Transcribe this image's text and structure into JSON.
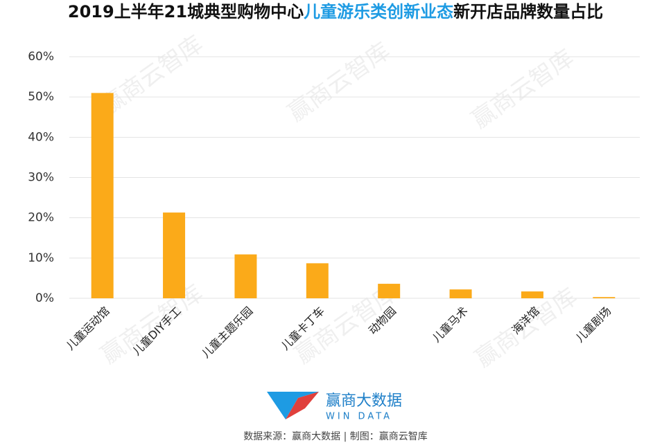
{
  "chart_data": {
    "type": "bar",
    "title_parts": [
      "2019上半年21城典型购物中心",
      "儿童游乐类创新业态",
      "新开店品牌数量占比"
    ],
    "title_colors": [
      "#111111",
      "#1e9be3",
      "#111111"
    ],
    "categories": [
      "儿童运动馆",
      "儿童DIY手工",
      "儿童主题乐园",
      "儿童卡丁车",
      "动物园",
      "儿童马术",
      "海洋馆",
      "儿童剧场"
    ],
    "values": [
      51,
      21.3,
      10.9,
      8.7,
      3.6,
      2.2,
      1.7,
      0.3
    ],
    "color": "#fbaa19",
    "ylim": [
      0,
      60
    ],
    "yticks": [
      {
        "value": 0,
        "label": "0%"
      },
      {
        "value": 10,
        "label": "10%"
      },
      {
        "value": 20,
        "label": "20%"
      },
      {
        "value": 30,
        "label": "30%"
      },
      {
        "value": 40,
        "label": "40%"
      },
      {
        "value": 50,
        "label": "50%"
      },
      {
        "value": 60,
        "label": "60%"
      }
    ],
    "grid": true,
    "watermark": "赢商云智库",
    "logo_text": "赢商大数据",
    "logo_subtext": "WIN DATA",
    "source": "数据来源：赢商大数据 | 制图：赢商云智库"
  }
}
